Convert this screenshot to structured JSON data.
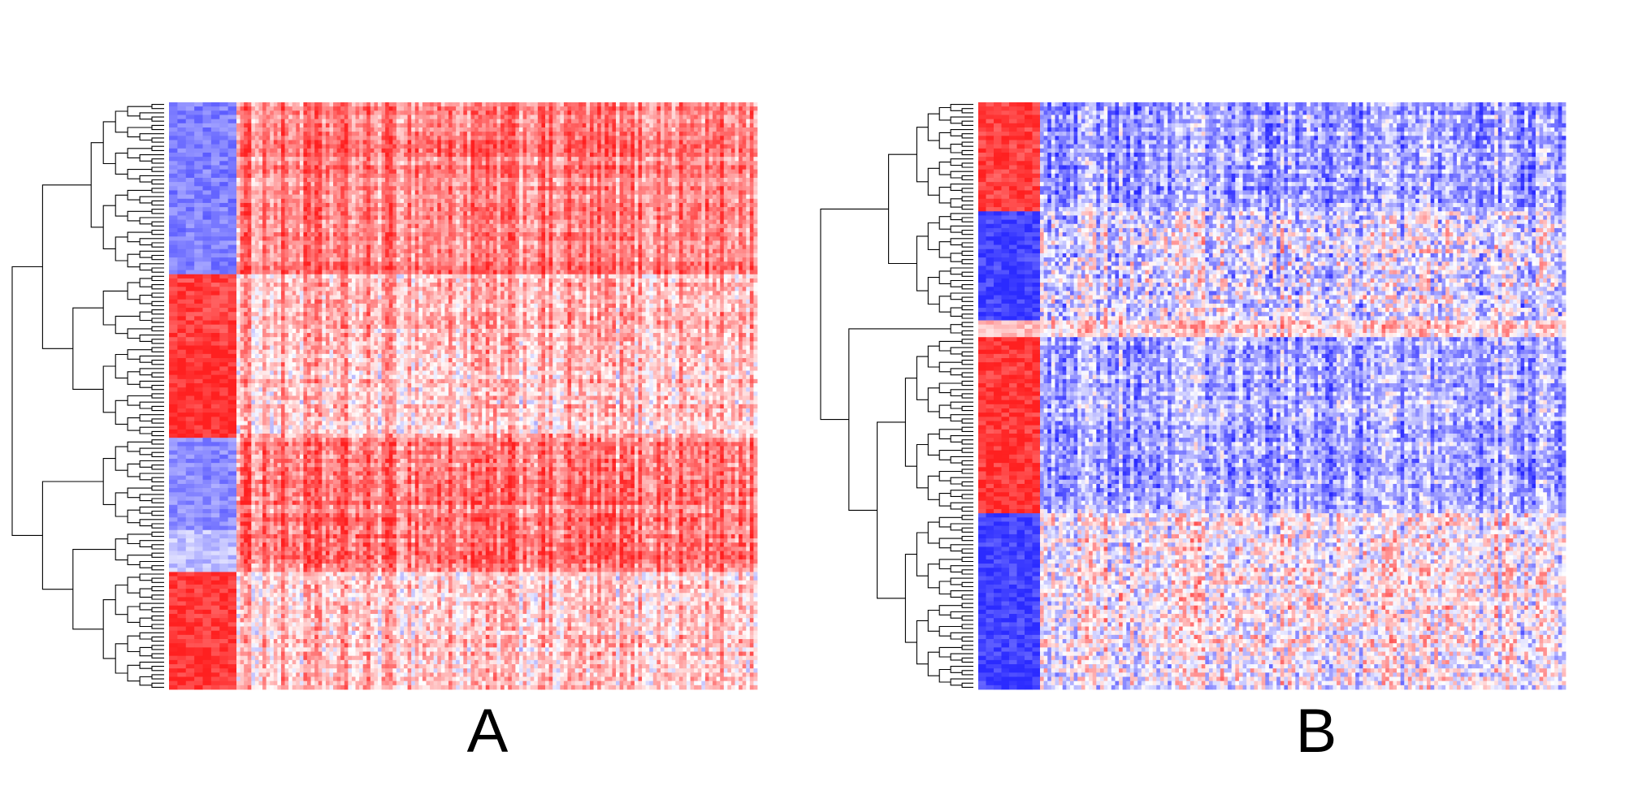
{
  "figure": {
    "panels": [
      {
        "label": "A"
      },
      {
        "label": "B"
      }
    ]
  },
  "chart_data": [
    {
      "type": "heatmap",
      "panel": "A",
      "title": "",
      "xlabel": "",
      "ylabel": "",
      "row_dendrogram": true,
      "color_scale": {
        "low": "#2b2bff",
        "mid": "#ffffff",
        "high": "#ff2020"
      },
      "n_rows": 140,
      "n_cols": 140,
      "key_col_fraction": 0.115,
      "row_blocks": [
        {
          "rows": 41,
          "key_value": -0.6,
          "body_mean": 0.55,
          "body_sd": 0.22
        },
        {
          "rows": 17,
          "key_value": 0.85,
          "body_mean": 0.3,
          "body_sd": 0.28
        },
        {
          "rows": 22,
          "key_value": 0.95,
          "body_mean": 0.25,
          "body_sd": 0.3
        },
        {
          "rows": 22,
          "key_value": -0.55,
          "body_mean": 0.6,
          "body_sd": 0.25
        },
        {
          "rows": 10,
          "key_value": -0.3,
          "body_mean": 0.6,
          "body_sd": 0.25
        },
        {
          "rows": 28,
          "key_value": 0.9,
          "body_mean": 0.2,
          "body_sd": 0.3
        }
      ]
    },
    {
      "type": "heatmap",
      "panel": "B",
      "title": "",
      "xlabel": "",
      "ylabel": "",
      "row_dendrogram": true,
      "color_scale": {
        "low": "#2b2bff",
        "mid": "#ffffff",
        "high": "#ff2020"
      },
      "n_rows": 140,
      "n_cols": 140,
      "key_col_fraction": 0.105,
      "row_blocks": [
        {
          "rows": 26,
          "key_value": 0.85,
          "body_mean": -0.45,
          "body_sd": 0.35
        },
        {
          "rows": 26,
          "key_value": -0.9,
          "body_mean": -0.15,
          "body_sd": 0.5
        },
        {
          "rows": 4,
          "key_value": 0.3,
          "body_mean": 0.15,
          "body_sd": 0.3
        },
        {
          "rows": 42,
          "key_value": 0.9,
          "body_mean": -0.4,
          "body_sd": 0.35
        },
        {
          "rows": 42,
          "key_value": -0.9,
          "body_mean": 0.0,
          "body_sd": 0.45
        }
      ]
    }
  ]
}
